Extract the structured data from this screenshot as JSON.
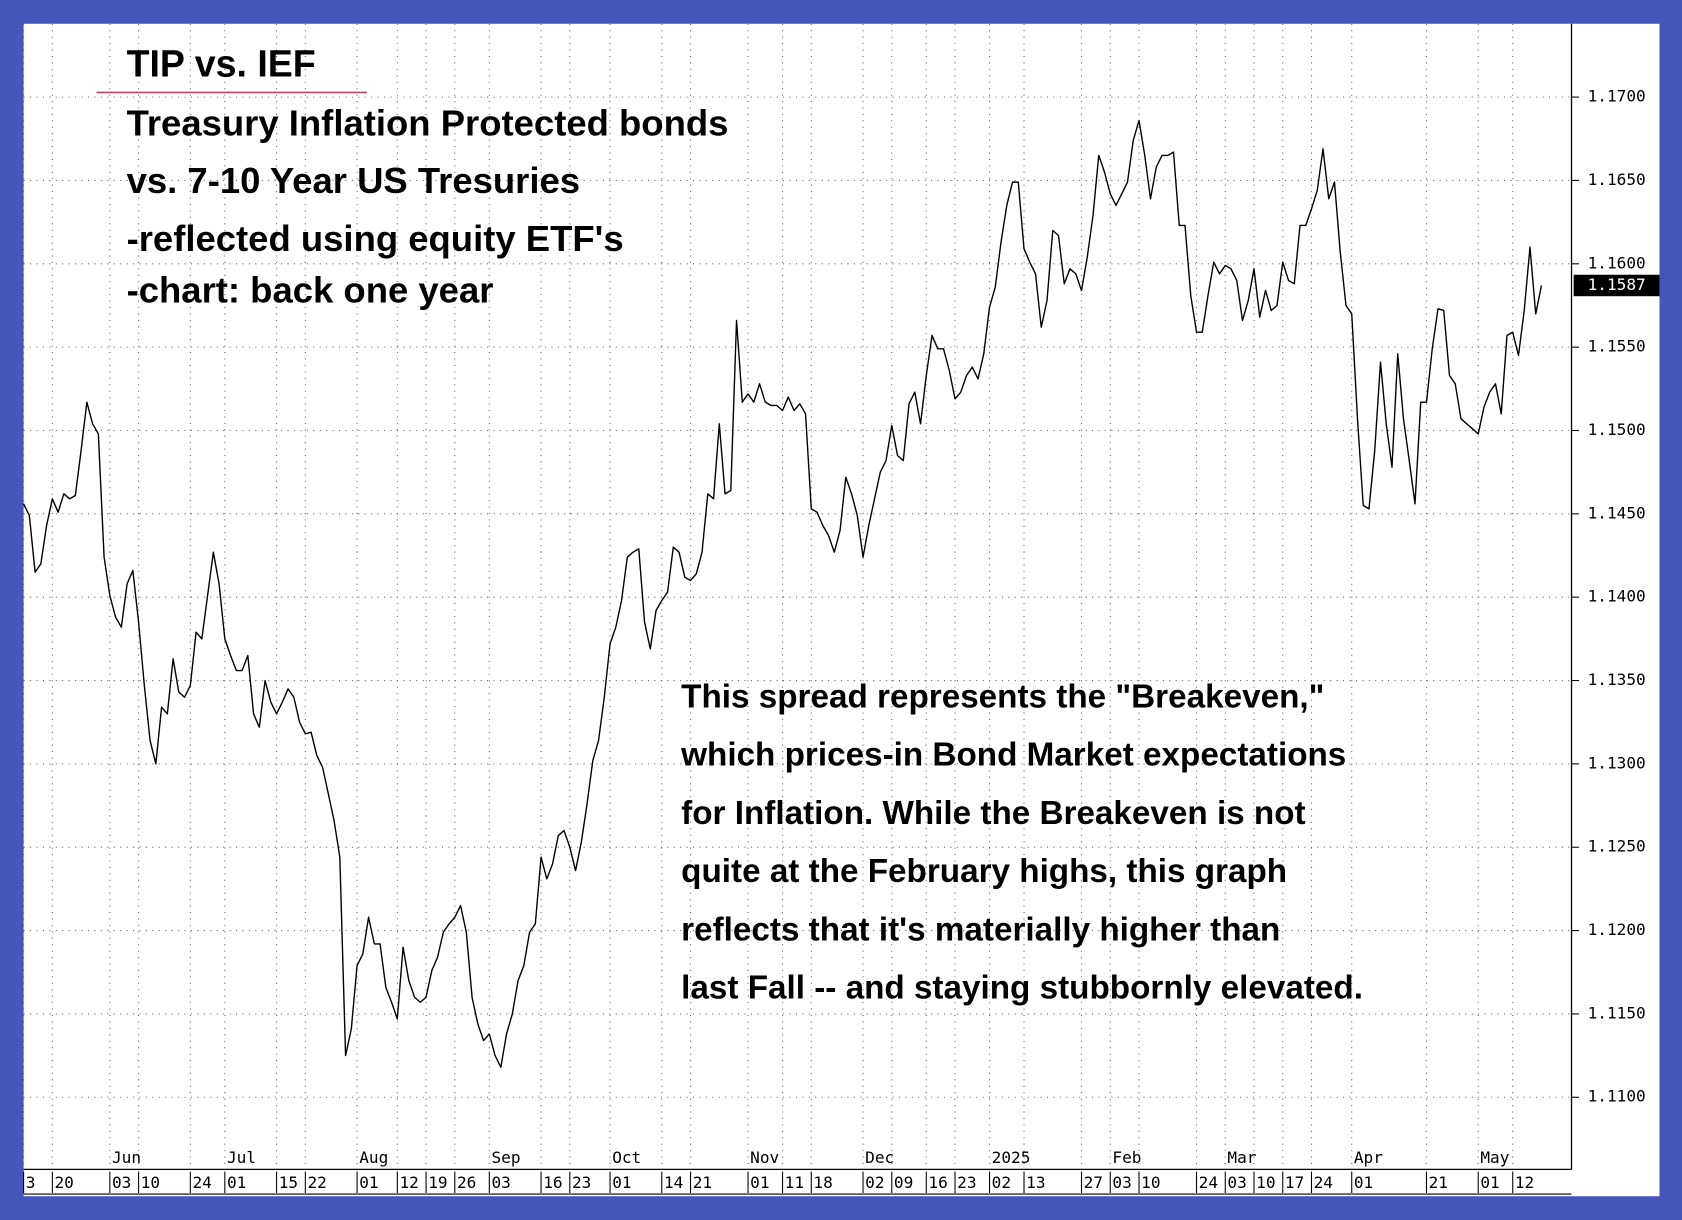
{
  "chart_data": {
    "type": "line",
    "title": "TIP vs. IEF",
    "subtitle_lines": [
      "Treasury Inflation Protected bonds",
      "vs. 7-10 Year US Tresuries",
      "-reflected using equity ETF's",
      "-chart: back one year"
    ],
    "annotation_lines": [
      "This spread represents the \"Breakeven,\"",
      "which prices-in Bond Market expectations",
      "for Inflation. While the Breakeven is not",
      "quite at the February highs, this graph",
      "reflects that it's materially higher than",
      "last Fall -- and staying stubbornly elevated."
    ],
    "categories": [
      "3",
      null,
      null,
      null,
      null,
      "20",
      null,
      null,
      null,
      null,
      null,
      null,
      null,
      null,
      null,
      "03",
      null,
      null,
      null,
      null,
      "10",
      null,
      null,
      null,
      null,
      null,
      null,
      null,
      null,
      "24",
      null,
      null,
      null,
      null,
      null,
      "01",
      null,
      null,
      null,
      null,
      null,
      null,
      null,
      null,
      "15",
      null,
      null,
      null,
      null,
      "22",
      null,
      null,
      null,
      null,
      null,
      null,
      null,
      null,
      "01",
      null,
      null,
      null,
      null,
      null,
      null,
      "12",
      null,
      null,
      null,
      null,
      "19",
      null,
      null,
      null,
      null,
      "26",
      null,
      null,
      null,
      null,
      null,
      "03",
      null,
      null,
      null,
      null,
      null,
      null,
      null,
      null,
      "16",
      null,
      null,
      null,
      null,
      "23",
      null,
      null,
      null,
      null,
      null,
      null,
      "01",
      null,
      null,
      null,
      null,
      null,
      null,
      null,
      null,
      "14",
      null,
      null,
      null,
      null,
      "21",
      null,
      null,
      null,
      null,
      null,
      null,
      null,
      null,
      null,
      "01",
      null,
      null,
      null,
      null,
      null,
      "11",
      null,
      null,
      null,
      null,
      "18",
      null,
      null,
      null,
      null,
      null,
      null,
      null,
      null,
      "02",
      null,
      null,
      null,
      null,
      "09",
      null,
      null,
      null,
      null,
      null,
      "16",
      null,
      null,
      null,
      null,
      "23",
      null,
      null,
      null,
      null,
      null,
      "02",
      null,
      null,
      null,
      null,
      null,
      "13",
      null,
      null,
      null,
      null,
      null,
      null,
      null,
      null,
      null,
      "27",
      null,
      null,
      null,
      null,
      "03",
      null,
      null,
      null,
      null,
      "10",
      null,
      null,
      null,
      null,
      null,
      null,
      null,
      null,
      null,
      "24",
      null,
      null,
      null,
      null,
      "03",
      null,
      null,
      null,
      null,
      "10",
      null,
      null,
      null,
      null,
      "17",
      null,
      null,
      null,
      null,
      "24",
      null,
      null,
      null,
      null,
      null,
      null,
      "01",
      null,
      null,
      null,
      null,
      null,
      null,
      null,
      null,
      null,
      null,
      null,
      null,
      "21",
      null,
      null,
      null,
      null,
      null,
      null,
      null,
      null,
      "01",
      null,
      null,
      null,
      null,
      null,
      "12",
      null,
      null,
      null,
      null,
      null
    ],
    "category_groups": [
      null,
      null,
      null,
      null,
      null,
      null,
      null,
      null,
      null,
      null,
      null,
      null,
      null,
      null,
      null,
      "Jun",
      null,
      null,
      null,
      null,
      null,
      null,
      null,
      null,
      null,
      null,
      null,
      null,
      null,
      null,
      null,
      null,
      null,
      null,
      null,
      "Jul",
      null,
      null,
      null,
      null,
      null,
      null,
      null,
      null,
      null,
      null,
      null,
      null,
      null,
      null,
      null,
      null,
      null,
      null,
      null,
      null,
      null,
      null,
      "Aug",
      null,
      null,
      null,
      null,
      null,
      null,
      null,
      null,
      null,
      null,
      null,
      null,
      null,
      null,
      null,
      null,
      null,
      null,
      null,
      null,
      null,
      null,
      "Sep",
      null,
      null,
      null,
      null,
      null,
      null,
      null,
      null,
      null,
      null,
      null,
      null,
      null,
      null,
      null,
      null,
      null,
      null,
      null,
      null,
      "Oct",
      null,
      null,
      null,
      null,
      null,
      null,
      null,
      null,
      null,
      null,
      null,
      null,
      null,
      null,
      null,
      null,
      null,
      null,
      null,
      null,
      null,
      null,
      null,
      "Nov",
      null,
      null,
      null,
      null,
      null,
      null,
      null,
      null,
      null,
      null,
      null,
      null,
      null,
      null,
      null,
      null,
      null,
      null,
      null,
      "Dec",
      null,
      null,
      null,
      null,
      null,
      null,
      null,
      null,
      null,
      null,
      null,
      null,
      null,
      null,
      null,
      null,
      null,
      null,
      null,
      null,
      null,
      "2025",
      null,
      null,
      null,
      null,
      null,
      null,
      null,
      null,
      null,
      null,
      null,
      null,
      null,
      null,
      null,
      null,
      null,
      null,
      null,
      null,
      "Feb",
      null,
      null,
      null,
      null,
      null,
      null,
      null,
      null,
      null,
      null,
      null,
      null,
      null,
      null,
      null,
      null,
      null,
      null,
      null,
      "Mar",
      null,
      null,
      null,
      null,
      null,
      null,
      null,
      null,
      null,
      null,
      null,
      null,
      null,
      null,
      null,
      null,
      null,
      null,
      null,
      null,
      null,
      "Apr",
      null,
      null,
      null,
      null,
      null,
      null,
      null,
      null,
      null,
      null,
      null,
      null,
      null,
      null,
      null,
      null,
      null,
      null,
      null,
      null,
      null,
      "May",
      null,
      null,
      null,
      null,
      null,
      null,
      null,
      null,
      null,
      null,
      null
    ],
    "values": [
      1.1456,
      1.1449,
      1.1415,
      1.142,
      1.1443,
      1.1459,
      1.1451,
      1.1462,
      1.1459,
      1.1461,
      1.1488,
      1.1517,
      1.1504,
      1.1498,
      1.1424,
      1.1401,
      1.1388,
      1.1382,
      1.1408,
      1.1416,
      1.1385,
      1.1347,
      1.1314,
      1.13,
      1.1334,
      1.133,
      1.1363,
      1.1343,
      1.134,
      1.1347,
      1.1379,
      1.1375,
      1.1401,
      1.1427,
      1.1408,
      1.1375,
      1.1365,
      1.1356,
      1.1356,
      1.1365,
      1.133,
      1.1322,
      1.135,
      1.1337,
      1.133,
      1.1337,
      1.1345,
      1.134,
      1.1325,
      1.1318,
      1.1319,
      1.1305,
      1.1298,
      1.1282,
      1.1266,
      1.1244,
      1.1125,
      1.1141,
      1.1179,
      1.1186,
      1.1208,
      1.1192,
      1.1192,
      1.1166,
      1.1157,
      1.1147,
      1.119,
      1.117,
      1.116,
      1.1157,
      1.116,
      1.1176,
      1.1184,
      1.1199,
      1.1204,
      1.1208,
      1.1215,
      1.1199,
      1.116,
      1.1144,
      1.1134,
      1.1138,
      1.1125,
      1.1118,
      1.1138,
      1.115,
      1.117,
      1.1179,
      1.1199,
      1.1204,
      1.1244,
      1.1231,
      1.124,
      1.1257,
      1.126,
      1.125,
      1.1236,
      1.1253,
      1.1276,
      1.1302,
      1.1314,
      1.134,
      1.1372,
      1.1382,
      1.1398,
      1.1424,
      1.1427,
      1.1429,
      1.1385,
      1.1369,
      1.1392,
      1.1398,
      1.1403,
      1.143,
      1.1427,
      1.1412,
      1.141,
      1.1414,
      1.1427,
      1.1462,
      1.1459,
      1.1504,
      1.1462,
      1.1464,
      1.1566,
      1.1517,
      1.1522,
      1.1517,
      1.1528,
      1.1517,
      1.1515,
      1.1515,
      1.1512,
      1.152,
      1.1512,
      1.1516,
      1.151,
      1.1453,
      1.1451,
      1.1443,
      1.1437,
      1.1427,
      1.144,
      1.1472,
      1.1462,
      1.1449,
      1.1424,
      1.1443,
      1.1459,
      1.1475,
      1.1482,
      1.1503,
      1.1485,
      1.1482,
      1.1516,
      1.1523,
      1.1504,
      1.1533,
      1.1557,
      1.1549,
      1.1549,
      1.1536,
      1.1519,
      1.1523,
      1.1533,
      1.1538,
      1.1531,
      1.1546,
      1.1574,
      1.1586,
      1.1613,
      1.1635,
      1.1649,
      1.1649,
      1.1609,
      1.1601,
      1.1594,
      1.1562,
      1.1578,
      1.162,
      1.1617,
      1.1588,
      1.1597,
      1.1594,
      1.1584,
      1.1604,
      1.1629,
      1.1665,
      1.1655,
      1.1642,
      1.1635,
      1.1642,
      1.1649,
      1.1674,
      1.1686,
      1.1665,
      1.1639,
      1.1658,
      1.1665,
      1.1665,
      1.1667,
      1.1623,
      1.1623,
      1.1581,
      1.1559,
      1.1559,
      1.1581,
      1.1601,
      1.1594,
      1.1599,
      1.1597,
      1.159,
      1.1566,
      1.1578,
      1.1597,
      1.1568,
      1.1584,
      1.1572,
      1.1575,
      1.1601,
      1.159,
      1.1588,
      1.1623,
      1.1623,
      1.1633,
      1.1644,
      1.1669,
      1.1639,
      1.1649,
      1.1607,
      1.1575,
      1.157,
      1.1507,
      1.1455,
      1.1453,
      1.1488,
      1.1541,
      1.1504,
      1.1478,
      1.1546,
      1.1507,
      1.1482,
      1.1456,
      1.1517,
      1.1517,
      1.1549,
      1.1573,
      1.1572,
      1.1533,
      1.1528,
      1.1507,
      1.1504,
      1.1501,
      1.1498,
      1.1514,
      1.1523,
      1.1528,
      1.151,
      1.1557,
      1.1559,
      1.1545,
      1.1572,
      1.161,
      1.157,
      1.1587
    ],
    "color": "#000000",
    "ylim": [
      1.1058,
      1.1744
    ],
    "yticks": [
      {
        "value": 1.11,
        "label": "1.1100"
      },
      {
        "value": 1.115,
        "label": "1.1150"
      },
      {
        "value": 1.12,
        "label": "1.1200"
      },
      {
        "value": 1.125,
        "label": "1.1250"
      },
      {
        "value": 1.13,
        "label": "1.1300"
      },
      {
        "value": 1.135,
        "label": "1.1350"
      },
      {
        "value": 1.14,
        "label": "1.1400"
      },
      {
        "value": 1.145,
        "label": "1.1450"
      },
      {
        "value": 1.15,
        "label": "1.1500"
      },
      {
        "value": 1.155,
        "label": "1.1550"
      },
      {
        "value": 1.16,
        "label": "1.1600"
      },
      {
        "value": 1.165,
        "label": "1.1650"
      },
      {
        "value": 1.17,
        "label": "1.1700"
      }
    ],
    "last_value": 1.1587,
    "grid": true
  }
}
